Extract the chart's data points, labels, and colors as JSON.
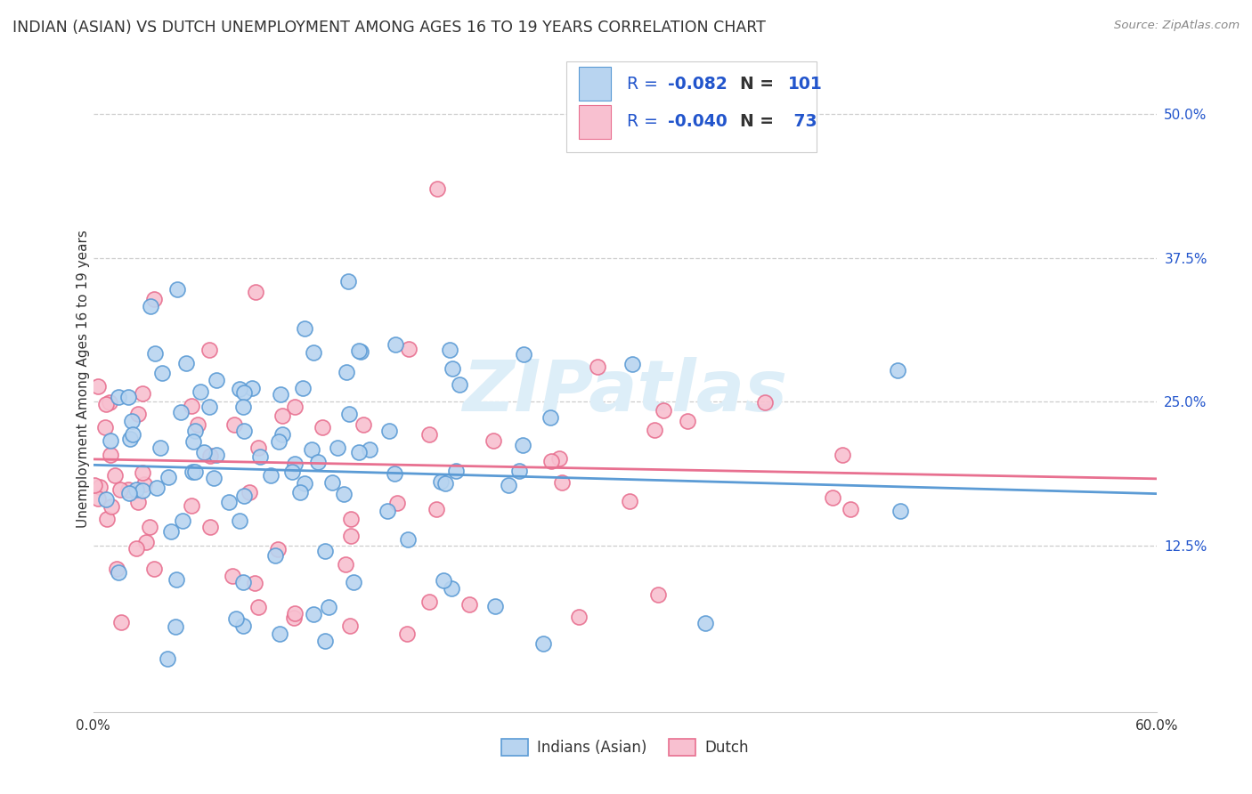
{
  "title": "INDIAN (ASIAN) VS DUTCH UNEMPLOYMENT AMONG AGES 16 TO 19 YEARS CORRELATION CHART",
  "source": "Source: ZipAtlas.com",
  "ylabel": "Unemployment Among Ages 16 to 19 years",
  "ytick_labels": [
    "12.5%",
    "25.0%",
    "37.5%",
    "50.0%"
  ],
  "ytick_values": [
    0.125,
    0.25,
    0.375,
    0.5
  ],
  "xlim": [
    0.0,
    0.6
  ],
  "ylim": [
    -0.02,
    0.56
  ],
  "watermark": "ZIPatlas",
  "legend_label_indian": "Indians (Asian)",
  "legend_label_dutch": "Dutch",
  "indian_scatter_face": "#b8d4f0",
  "indian_scatter_edge": "#5b9bd5",
  "dutch_scatter_face": "#f8c0d0",
  "dutch_scatter_edge": "#e87090",
  "background_color": "#ffffff",
  "grid_color": "#c8c8c8",
  "title_fontsize": 12.5,
  "axis_label_fontsize": 11,
  "tick_fontsize": 11,
  "trendline_indian_color": "#5b9bd5",
  "trendline_dutch_color": "#e87090",
  "trendline_start_y_indian": 0.195,
  "trendline_end_y_indian": 0.17,
  "trendline_start_y_dutch": 0.2,
  "trendline_end_y_dutch": 0.183,
  "legend_R_color": "#2255cc",
  "legend_N_label_color": "#333333",
  "legend_N_value_color": "#2255cc"
}
